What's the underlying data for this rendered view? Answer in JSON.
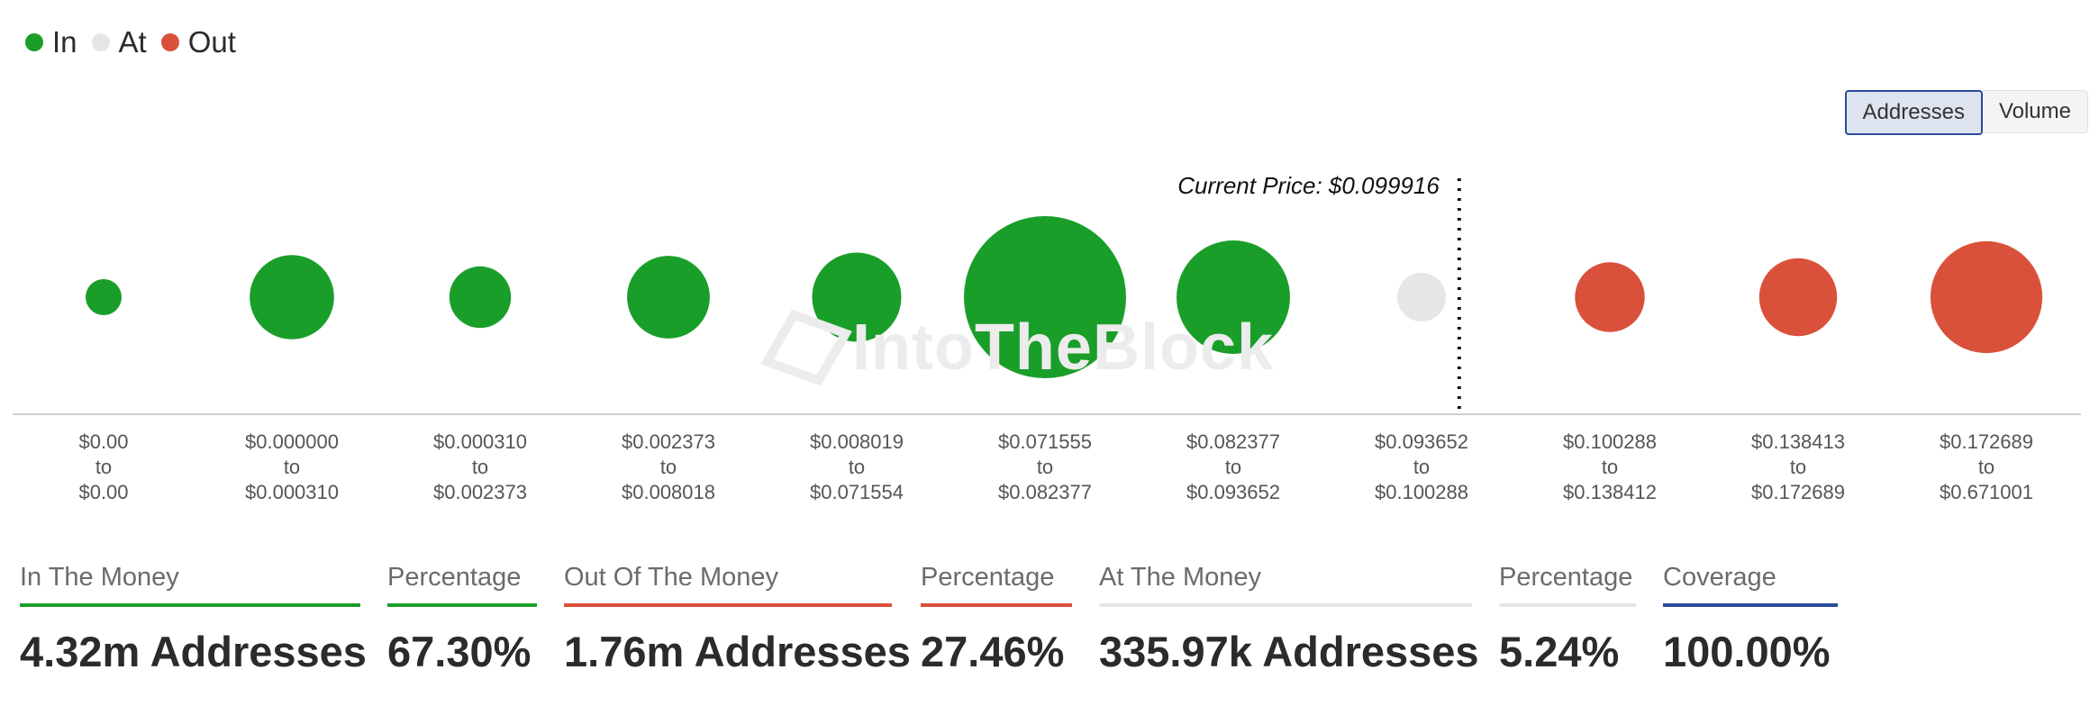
{
  "legend": [
    {
      "label": "In",
      "color": "#1a9e2a"
    },
    {
      "label": "At",
      "color": "#e6e6e6"
    },
    {
      "label": "Out",
      "color": "#d9513a"
    }
  ],
  "toggle": {
    "addresses_label": "Addresses",
    "volume_label": "Volume",
    "active": "Addresses"
  },
  "watermark": "IntoTheBlock",
  "chart_data": {
    "type": "scatter",
    "title": "",
    "current_price_label": "Current Price: $0.099916",
    "current_price_position": "between $0.093652–$0.100288 and $0.100288–$0.138412",
    "categories": [
      {
        "from": "$0.00",
        "to": "$0.00",
        "status": "In"
      },
      {
        "from": "$0.000000",
        "to": "$0.000310",
        "status": "In"
      },
      {
        "from": "$0.000310",
        "to": "$0.002373",
        "status": "In"
      },
      {
        "from": "$0.002373",
        "to": "$0.008018",
        "status": "In"
      },
      {
        "from": "$0.008019",
        "to": "$0.071554",
        "status": "In"
      },
      {
        "from": "$0.071555",
        "to": "$0.082377",
        "status": "In"
      },
      {
        "from": "$0.082377",
        "to": "$0.093652",
        "status": "In"
      },
      {
        "from": "$0.093652",
        "to": "$0.100288",
        "status": "At"
      },
      {
        "from": "$0.100288",
        "to": "$0.138412",
        "status": "Out"
      },
      {
        "from": "$0.138413",
        "to": "$0.172689",
        "status": "Out"
      },
      {
        "from": "$0.172689",
        "to": "$0.671001",
        "status": "Out"
      }
    ],
    "bubble_relative_size": [
      0.04,
      0.52,
      0.38,
      0.51,
      0.55,
      1.0,
      0.7,
      0.3,
      0.43,
      0.48,
      0.69
    ],
    "connector_word": "to"
  },
  "stats": [
    {
      "label": "In The Money",
      "value": "4.32m Addresses",
      "color": "#1a9e2a"
    },
    {
      "label": "Percentage",
      "value": "67.30%",
      "color": "#1a9e2a"
    },
    {
      "label": "Out Of The Money",
      "value": "1.76m Addresses",
      "color": "#d9513a"
    },
    {
      "label": "Percentage",
      "value": "27.46%",
      "color": "#d9513a"
    },
    {
      "label": "At The Money",
      "value": "335.97k Addresses",
      "color": "#e6e6e6"
    },
    {
      "label": "Percentage",
      "value": "5.24%",
      "color": "#e6e6e6"
    },
    {
      "label": "Coverage",
      "value": "100.00%",
      "color": "#2b4b9b"
    }
  ]
}
